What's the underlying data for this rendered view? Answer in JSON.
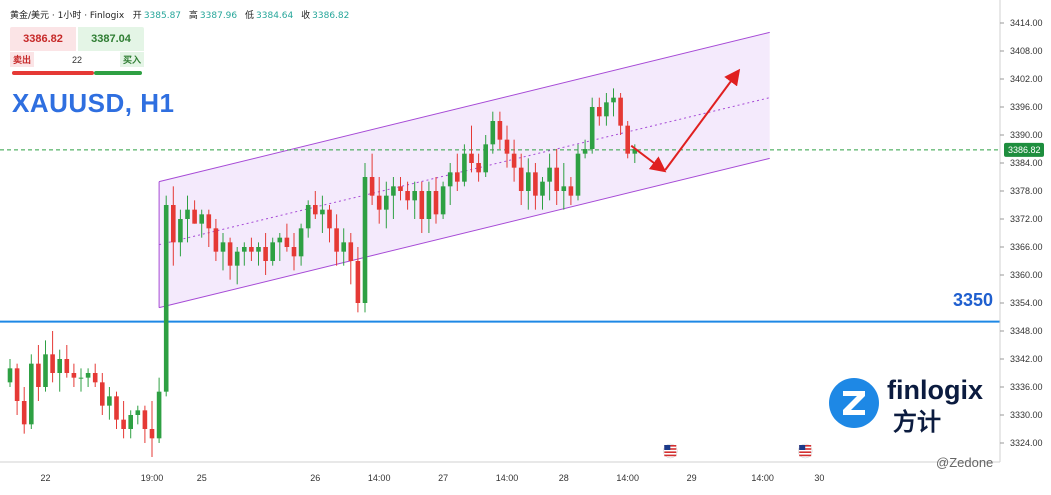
{
  "header": {
    "symbol": "黄金/美元 · 1小时 · Finlogix",
    "open_label": "开",
    "open": "3385.87",
    "high_label": "高",
    "high": "3387.96",
    "low_label": "低",
    "low": "3384.64",
    "close_label": "收",
    "close": "3386.82"
  },
  "trade_panel": {
    "sell_price": "3386.82",
    "buy_price": "3387.04",
    "sell_label": "卖出",
    "buy_label": "买入",
    "spread": "22"
  },
  "title": "XAUUSD, H1",
  "level_label": "3350",
  "logo": {
    "brand": "finlogix",
    "brand_cn": "方计"
  },
  "watermark": "@Zedone",
  "colors": {
    "up": "#2ea043",
    "down": "#e53935",
    "channel": "#a64ad6",
    "channel_fill": "#f4eafc",
    "level": "#1e88e5",
    "current_price": "#2ea043",
    "arrow": "#e02020",
    "price_tag_bg": "#1e8e3e"
  },
  "chart_data": {
    "type": "candlestick",
    "symbol": "XAUUSD",
    "timeframe": "H1",
    "ylim": [
      3321,
      3417
    ],
    "y_ticks": [
      "3414.00",
      "3408.00",
      "3402.00",
      "3396.00",
      "3390.00",
      "3384.00",
      "3378.00",
      "3372.00",
      "3366.00",
      "3360.00",
      "3354.00",
      "3348.00",
      "3342.00",
      "3336.00",
      "3330.00",
      "3324.00"
    ],
    "x_ticks": [
      {
        "label": "22",
        "index": 5
      },
      {
        "label": "19:00",
        "index": 20
      },
      {
        "label": "25",
        "index": 27
      },
      {
        "label": "26",
        "index": 43
      },
      {
        "label": "14:00",
        "index": 52
      },
      {
        "label": "27",
        "index": 61
      },
      {
        "label": "14:00",
        "index": 70
      },
      {
        "label": "28",
        "index": 78
      },
      {
        "label": "14:00",
        "index": 87
      },
      {
        "label": "29",
        "index": 96
      },
      {
        "label": "14:00",
        "index": 106
      },
      {
        "label": "30",
        "index": 114
      }
    ],
    "current_price": 3386.82,
    "current_price_label": "3386.82",
    "support_level": 3350,
    "channel": {
      "x_range": [
        21,
        107
      ],
      "upper": [
        3380,
        3412
      ],
      "mid": [
        3366.5,
        3398
      ],
      "lower": [
        3353,
        3385
      ]
    },
    "projection": [
      {
        "x": 87.5,
        "y": 3387.7
      },
      {
        "x": 92,
        "y": 3382.5
      },
      {
        "x": 102.5,
        "y": 3403.5
      }
    ],
    "events": [
      93,
      112
    ],
    "candles": [
      [
        3337,
        3342,
        3336,
        3340
      ],
      [
        3340,
        3341,
        3330,
        3333
      ],
      [
        3333,
        3336,
        3326,
        3328
      ],
      [
        3328,
        3343,
        3327,
        3341
      ],
      [
        3341,
        3345,
        3333,
        3336
      ],
      [
        3336,
        3346,
        3335,
        3343
      ],
      [
        3343,
        3348,
        3337,
        3339
      ],
      [
        3339,
        3344,
        3335,
        3342
      ],
      [
        3342,
        3345,
        3338,
        3339
      ],
      [
        3339,
        3341,
        3336,
        3338
      ],
      [
        3338,
        3340,
        3335,
        3338
      ],
      [
        3338,
        3340,
        3336,
        3339
      ],
      [
        3339,
        3341,
        3336,
        3337
      ],
      [
        3337,
        3339,
        3330,
        3332
      ],
      [
        3332,
        3336,
        3329,
        3334
      ],
      [
        3334,
        3335,
        3327,
        3329
      ],
      [
        3329,
        3333,
        3325,
        3327
      ],
      [
        3327,
        3331,
        3325,
        3330
      ],
      [
        3330,
        3332,
        3328,
        3331
      ],
      [
        3331,
        3332,
        3324,
        3327
      ],
      [
        3327,
        3333,
        3321,
        3325
      ],
      [
        3325,
        3338,
        3324,
        3335
      ],
      [
        3335,
        3377,
        3334,
        3375
      ],
      [
        3375,
        3379,
        3362,
        3367
      ],
      [
        3367,
        3374,
        3364,
        3372
      ],
      [
        3372,
        3377,
        3367,
        3374
      ],
      [
        3374,
        3376,
        3371,
        3371
      ],
      [
        3371,
        3374,
        3368,
        3373
      ],
      [
        3373,
        3374,
        3366,
        3370
      ],
      [
        3370,
        3372,
        3363,
        3365
      ],
      [
        3365,
        3369,
        3361,
        3367
      ],
      [
        3367,
        3368,
        3359,
        3362
      ],
      [
        3362,
        3366,
        3358,
        3365
      ],
      [
        3365,
        3367,
        3362,
        3366
      ],
      [
        3366,
        3368,
        3363,
        3365
      ],
      [
        3365,
        3367,
        3362,
        3366
      ],
      [
        3366,
        3369,
        3360,
        3363
      ],
      [
        3363,
        3368,
        3362,
        3367
      ],
      [
        3367,
        3369,
        3363,
        3368
      ],
      [
        3368,
        3371,
        3365,
        3366
      ],
      [
        3366,
        3369,
        3361,
        3364
      ],
      [
        3364,
        3371,
        3362,
        3370
      ],
      [
        3370,
        3376,
        3368,
        3375
      ],
      [
        3375,
        3378,
        3372,
        3373
      ],
      [
        3373,
        3377,
        3369,
        3374
      ],
      [
        3374,
        3375,
        3367,
        3370
      ],
      [
        3370,
        3373,
        3362,
        3365
      ],
      [
        3365,
        3370,
        3362,
        3367
      ],
      [
        3367,
        3369,
        3358,
        3363
      ],
      [
        3363,
        3366,
        3352,
        3354
      ],
      [
        3354,
        3384,
        3352,
        3381
      ],
      [
        3381,
        3386,
        3375,
        3377
      ],
      [
        3377,
        3381,
        3371,
        3374
      ],
      [
        3374,
        3380,
        3370,
        3377
      ],
      [
        3377,
        3381,
        3372,
        3379
      ],
      [
        3379,
        3381,
        3376,
        3378
      ],
      [
        3378,
        3380,
        3374,
        3376
      ],
      [
        3376,
        3380,
        3372,
        3378
      ],
      [
        3378,
        3380,
        3369,
        3372
      ],
      [
        3372,
        3380,
        3369,
        3378
      ],
      [
        3378,
        3381,
        3371,
        3373
      ],
      [
        3373,
        3380,
        3372,
        3379
      ],
      [
        3379,
        3384,
        3375,
        3382
      ],
      [
        3382,
        3386,
        3378,
        3380
      ],
      [
        3380,
        3388,
        3379,
        3386
      ],
      [
        3386,
        3392,
        3382,
        3384
      ],
      [
        3384,
        3386,
        3380,
        3382
      ],
      [
        3382,
        3390,
        3381,
        3388
      ],
      [
        3388,
        3395,
        3386,
        3393
      ],
      [
        3393,
        3395,
        3387,
        3389
      ],
      [
        3389,
        3392,
        3383,
        3386
      ],
      [
        3386,
        3389,
        3380,
        3383
      ],
      [
        3383,
        3386,
        3375,
        3378
      ],
      [
        3378,
        3385,
        3374,
        3382
      ],
      [
        3382,
        3384,
        3374,
        3377
      ],
      [
        3377,
        3381,
        3374,
        3380
      ],
      [
        3380,
        3386,
        3376,
        3383
      ],
      [
        3383,
        3387,
        3375,
        3378
      ],
      [
        3378,
        3384,
        3374,
        3379
      ],
      [
        3379,
        3381,
        3375,
        3377
      ],
      [
        3377,
        3388,
        3376,
        3386
      ],
      [
        3386,
        3389,
        3385,
        3387
      ],
      [
        3387,
        3398,
        3386,
        3396
      ],
      [
        3396,
        3398,
        3392,
        3394
      ],
      [
        3394,
        3399,
        3392,
        3397
      ],
      [
        3397,
        3400,
        3394,
        3398
      ],
      [
        3398,
        3399,
        3390,
        3392
      ],
      [
        3392,
        3393,
        3385,
        3386
      ],
      [
        3386,
        3388,
        3384,
        3387
      ]
    ]
  }
}
